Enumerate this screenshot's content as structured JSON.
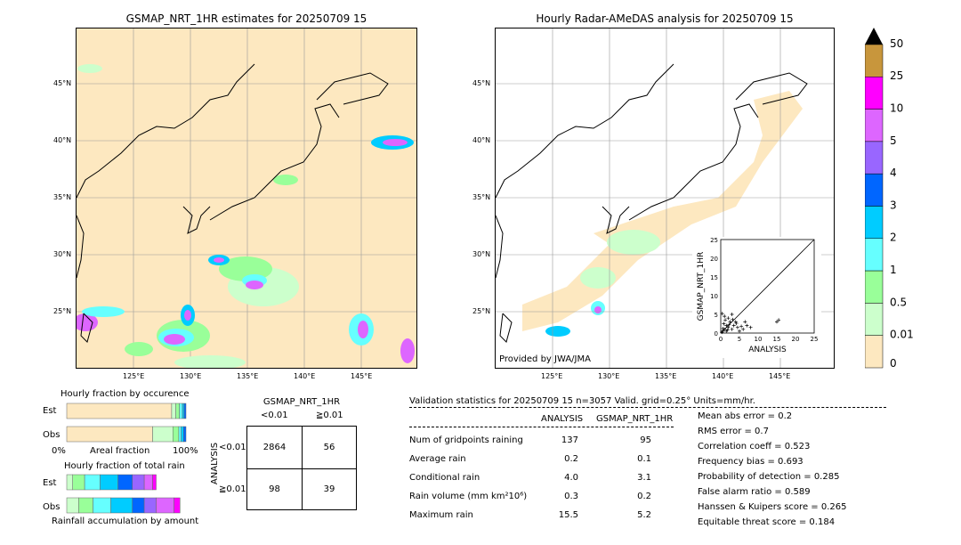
{
  "left_map": {
    "title": "GSMAP_NRT_1HR estimates for 20250709 15",
    "lat_labels": [
      "45°N",
      "40°N",
      "35°N",
      "30°N",
      "25°N"
    ],
    "lon_labels": [
      "125°E",
      "130°E",
      "135°E",
      "140°E",
      "145°E"
    ]
  },
  "right_map": {
    "title": "Hourly Radar-AMeDAS analysis for 20250709 15",
    "lat_labels": [
      "45°N",
      "40°N",
      "35°N",
      "30°N",
      "25°N"
    ],
    "lon_labels": [
      "125°E",
      "130°E",
      "135°E",
      "140°E",
      "145°E"
    ],
    "credit": "Provided by JWA/JMA"
  },
  "colorbar": {
    "labels": [
      "50",
      "25",
      "10",
      "5",
      "4",
      "3",
      "2",
      "1",
      "0.5",
      "0.01",
      "0"
    ],
    "colors": [
      "#c8963c",
      "#ff00ff",
      "#dd66ff",
      "#9966ff",
      "#0066ff",
      "#00ccff",
      "#66ffff",
      "#99ff99",
      "#ccffcc",
      "#fde8c0"
    ]
  },
  "chart_data": [
    {
      "type": "scatter",
      "title": "",
      "xlabel": "ANALYSIS",
      "ylabel": "GSMAP_NRT_1HR",
      "xlim": [
        0,
        25
      ],
      "ylim": [
        0,
        25
      ],
      "xticks": [
        "0",
        "5",
        "10",
        "15",
        "20",
        "25"
      ],
      "yticks": [
        "0",
        "5",
        "10",
        "15",
        "20",
        "25"
      ],
      "points": [
        [
          0.5,
          0.5
        ],
        [
          1,
          1
        ],
        [
          1.5,
          0.5
        ],
        [
          2,
          1.5
        ],
        [
          0.8,
          2.5
        ],
        [
          1.2,
          3.5
        ],
        [
          2.5,
          3
        ],
        [
          3,
          1
        ],
        [
          3.5,
          2
        ],
        [
          1,
          4.5
        ],
        [
          2,
          4
        ],
        [
          4,
          3
        ],
        [
          4.5,
          1.5
        ],
        [
          5,
          0.5
        ],
        [
          6,
          1
        ],
        [
          7,
          2
        ],
        [
          8,
          1.5
        ],
        [
          0.3,
          0.2
        ],
        [
          0.6,
          1.2
        ],
        [
          1.8,
          0.8
        ],
        [
          2.2,
          2.2
        ],
        [
          3.2,
          3.6
        ],
        [
          4.2,
          2.6
        ],
        [
          5.5,
          1.8
        ],
        [
          6.5,
          3
        ],
        [
          15.5,
          3.5
        ],
        [
          15,
          3
        ],
        [
          0.4,
          5.2
        ],
        [
          3,
          5
        ],
        [
          1.5,
          2
        ]
      ]
    },
    {
      "type": "bar",
      "title": "Hourly fraction by occurence",
      "categories": [
        "Est",
        "Obs"
      ],
      "xlabel": "Areal fraction",
      "xticks": [
        "0%",
        "100%"
      ],
      "series": [
        {
          "category": "Est",
          "segments": [
            0.88,
            0.035,
            0.03,
            0.025,
            0.015,
            0.015
          ]
        },
        {
          "category": "Obs",
          "segments": [
            0.72,
            0.17,
            0.05,
            0.02,
            0.02,
            0.02
          ]
        }
      ]
    },
    {
      "type": "bar",
      "title": "Hourly fraction of total rain",
      "categories": [
        "Est",
        "Obs"
      ],
      "xlabel": "Rainfall accumulation by amount",
      "series": [
        {
          "category": "Est",
          "segments": [
            0.05,
            0.1,
            0.13,
            0.15,
            0.12,
            0.1,
            0.07,
            0.03
          ]
        },
        {
          "category": "Obs",
          "segments": [
            0.1,
            0.12,
            0.15,
            0.18,
            0.1,
            0.1,
            0.15,
            0.05
          ]
        }
      ]
    }
  ],
  "contingency": {
    "top_label": "GSMAP_NRT_1HR",
    "col_labels": [
      "<0.01",
      "≧0.01"
    ],
    "side_label": "ANALYSIS",
    "row_labels": [
      "<0.01",
      "≧0.01"
    ],
    "cells": [
      [
        "2864",
        "56"
      ],
      [
        "98",
        "39"
      ]
    ]
  },
  "validation": {
    "header": "Validation statistics for 20250709 15  n=3057 Valid. grid=0.25° Units=mm/hr.",
    "col1": "ANALYSIS",
    "col2": "GSMAP_NRT_1HR",
    "rows": [
      {
        "label": "Num of gridpoints raining",
        "a": "137",
        "g": "95"
      },
      {
        "label": "Average rain",
        "a": "0.2",
        "g": "0.1"
      },
      {
        "label": "Conditional rain",
        "a": "4.0",
        "g": "3.1"
      },
      {
        "label": "Rain volume (mm km²10⁶)",
        "a": "0.3",
        "g": "0.2"
      },
      {
        "label": "Maximum rain",
        "a": "15.5",
        "g": "5.2"
      }
    ],
    "scores": [
      "Mean abs error =    0.2",
      "RMS error =    0.7",
      "Correlation coeff =  0.523",
      "Frequency bias =  0.693",
      "Probability of detection =  0.285",
      "False alarm ratio =  0.589",
      "Hanssen & Kuipers score =  0.265",
      "Equitable threat score =  0.184"
    ]
  }
}
